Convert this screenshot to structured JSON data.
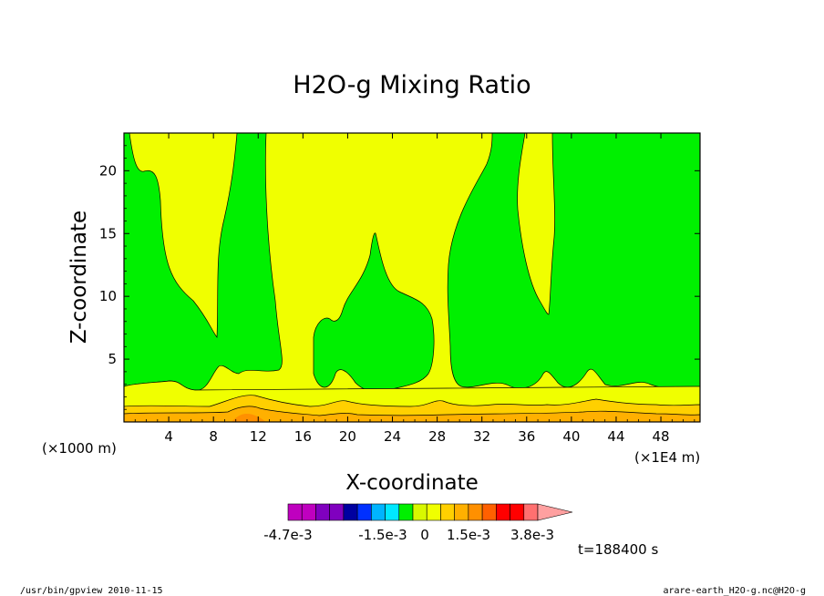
{
  "chart_data": {
    "type": "contour",
    "title": "H2O-g Mixing Ratio",
    "xlabel": "X-coordinate",
    "ylabel": "Z-coordinate",
    "x_units": "(×1E4 m)",
    "y_units": "(×1000 m)",
    "xlim": [
      0,
      51.5
    ],
    "ylim": [
      0,
      23
    ],
    "x_ticks": [
      4,
      8,
      12,
      16,
      20,
      24,
      28,
      32,
      36,
      40,
      44,
      48
    ],
    "y_ticks": [
      5,
      10,
      15,
      20
    ],
    "time_label": "t=188400 s",
    "colorbar": {
      "colors": [
        "#bf00bf",
        "#bf00bf",
        "#8000bf",
        "#8000bf",
        "#0000a0",
        "#0030ff",
        "#00b4ff",
        "#00e8ff",
        "#00f000",
        "#d8f800",
        "#f0ff00",
        "#ffd000",
        "#ffb000",
        "#ff9000",
        "#ff6000",
        "#ff0000",
        "#ff0000",
        "#ff7070",
        "#ffa0a0"
      ],
      "tick_labels": [
        "-4.7e-3",
        "-1.5e-3",
        "0",
        "1.5e-3",
        "3.8e-3"
      ]
    },
    "fill_colors": {
      "yellow": "#f0ff00",
      "green": "#00f000",
      "light_orange": "#ffd000",
      "orange": "#ffb000",
      "dark_orange": "#ff9000"
    }
  },
  "footer": {
    "left": "/usr/bin/gpview  2010-11-15",
    "right": "arare-earth_H2O-g.nc@H2O-g"
  }
}
